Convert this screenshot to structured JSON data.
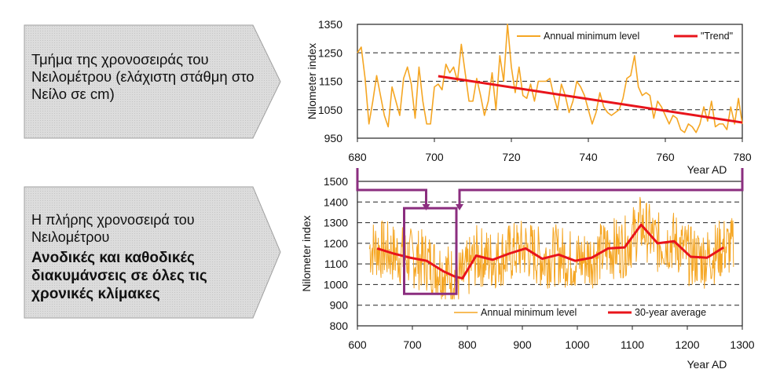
{
  "callouts": {
    "top_text": "Τμήμα της χρονοσειράς του Νειλομέτρου (ελάχιστη στάθμη στο Νείλο σε cm)",
    "bottom_text": "Η πλήρης χρονοσειρά του Νειλομέτρου",
    "bottom_bold": "Ανοδικές και καθοδικές διακυμάνσεις σε όλες τις χρονικές κλίμακες"
  },
  "colors": {
    "annual": "#f5a623",
    "trend": "#e8141b",
    "grid": "#222222",
    "highlight": "#8b2e7f",
    "callout_fill": "#d9d9d9"
  },
  "chart_data": [
    {
      "type": "line",
      "xlabel": "Year AD",
      "ylabel": "Nilometer index",
      "xlim": [
        680,
        780
      ],
      "ylim": [
        950,
        1350
      ],
      "xticks": [
        680,
        700,
        720,
        740,
        760,
        780
      ],
      "yticks": [
        950,
        1050,
        1150,
        1250,
        1350
      ],
      "legend": [
        "Annual minimum level",
        "\"Trend\""
      ],
      "legend_position": "top-right",
      "series": [
        {
          "name": "Annual minimum level",
          "x": [
            680,
            681,
            682,
            683,
            684,
            685,
            686,
            687,
            688,
            689,
            690,
            691,
            692,
            693,
            694,
            695,
            696,
            697,
            698,
            699,
            700,
            701,
            702,
            703,
            704,
            705,
            706,
            707,
            708,
            709,
            710,
            711,
            712,
            713,
            714,
            715,
            716,
            717,
            718,
            719,
            720,
            721,
            722,
            723,
            724,
            725,
            726,
            727,
            728,
            729,
            730,
            731,
            732,
            733,
            734,
            735,
            736,
            737,
            738,
            739,
            740,
            741,
            742,
            743,
            744,
            745,
            746,
            747,
            748,
            749,
            750,
            751,
            752,
            753,
            754,
            755,
            756,
            757,
            758,
            759,
            760,
            761,
            762,
            763,
            764,
            765,
            766,
            767,
            768,
            769,
            770,
            771,
            772,
            773,
            774,
            775,
            776,
            777,
            778,
            779,
            780
          ],
          "values": [
            1250,
            1270,
            1160,
            1000,
            1080,
            1170,
            1100,
            1030,
            990,
            1130,
            1080,
            1030,
            1160,
            1200,
            1140,
            1020,
            1200,
            1080,
            1000,
            1000,
            1130,
            1140,
            1120,
            1210,
            1180,
            1200,
            1150,
            1280,
            1180,
            1080,
            1080,
            1160,
            1100,
            1030,
            1080,
            1180,
            1050,
            1240,
            1150,
            1350,
            1200,
            1110,
            1200,
            1100,
            1090,
            1140,
            1080,
            1150,
            1150,
            1150,
            1160,
            1100,
            1050,
            1140,
            1100,
            1040,
            1080,
            1150,
            1130,
            1100,
            1050,
            1000,
            1040,
            1110,
            1060,
            1040,
            1030,
            1040,
            1050,
            1090,
            1160,
            1170,
            1240,
            1130,
            1100,
            1110,
            1100,
            1020,
            1080,
            1060,
            1030,
            1000,
            1030,
            1020,
            980,
            970,
            1000,
            990,
            970,
            1000,
            1060,
            1010,
            1080,
            990,
            1000,
            1000,
            980,
            1060,
            1000,
            1090,
            1000
          ]
        },
        {
          "name": "\"Trend\"",
          "x": [
            701,
            780
          ],
          "values": [
            1168,
            1005
          ]
        }
      ]
    },
    {
      "type": "line",
      "xlabel": "Year AD",
      "ylabel": "Nilometer index",
      "xlim": [
        600,
        1300
      ],
      "ylim": [
        800,
        1500
      ],
      "xticks": [
        600,
        700,
        800,
        900,
        1000,
        1100,
        1200,
        1300
      ],
      "yticks": [
        800,
        900,
        1000,
        1100,
        1200,
        1300,
        1400,
        1500
      ],
      "legend": [
        "Annual minimum level",
        "30-year average"
      ],
      "legend_position": "bottom-right",
      "series": [
        {
          "name": "Annual minimum level",
          "x_range": [
            622,
            1284
          ],
          "noise_seed": 7,
          "amplitude": 150
        },
        {
          "name": "30-year average",
          "x": [
            636,
            666,
            696,
            726,
            756,
            776,
            791,
            816,
            846,
            876,
            906,
            936,
            966,
            996,
            1026,
            1056,
            1086,
            1116,
            1146,
            1176,
            1206,
            1236,
            1266
          ],
          "values": [
            1175,
            1150,
            1130,
            1115,
            1065,
            1040,
            1030,
            1140,
            1120,
            1150,
            1175,
            1125,
            1145,
            1115,
            1130,
            1175,
            1180,
            1290,
            1200,
            1210,
            1135,
            1130,
            1180
          ]
        }
      ],
      "highlight_box": {
        "x_start": 685,
        "x_end": 780,
        "y_low": 955,
        "y_high": 1370,
        "top_bracket_x": [
          600,
          1300
        ]
      }
    }
  ]
}
